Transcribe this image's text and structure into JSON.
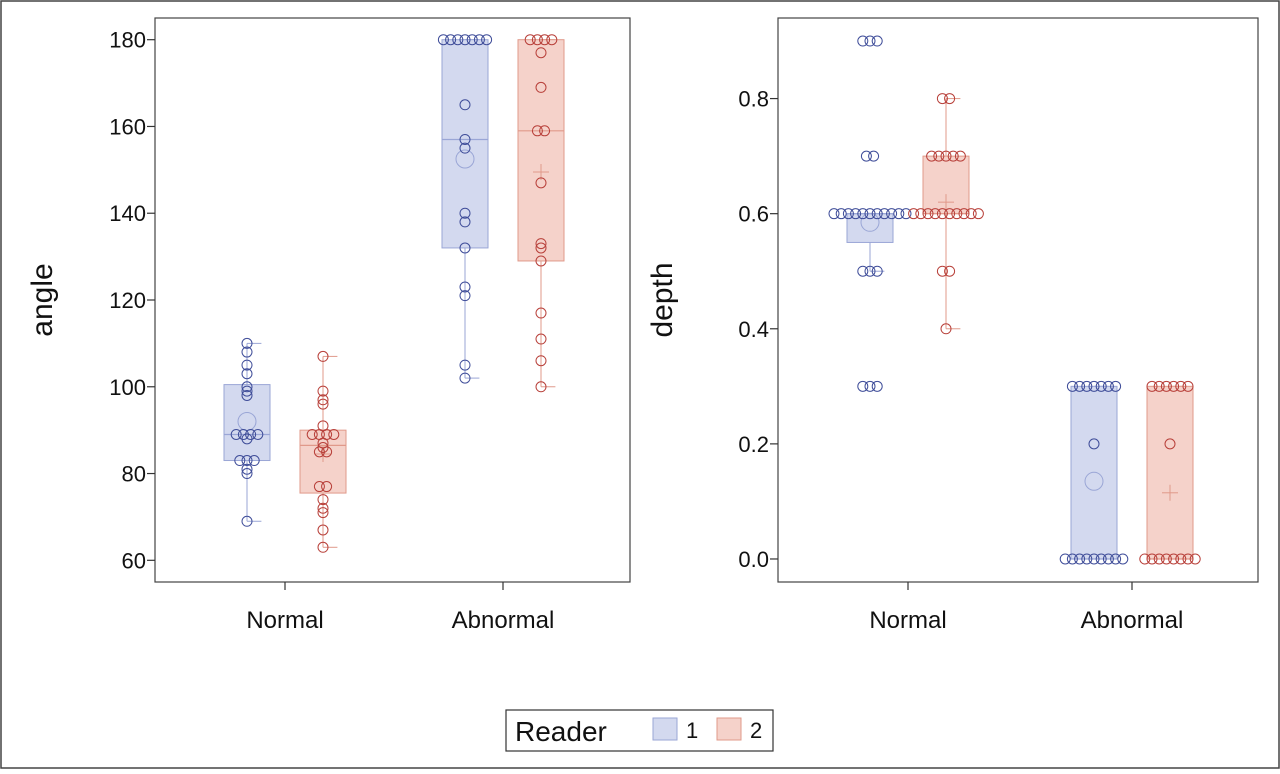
{
  "colors": {
    "reader1_fill": "#d3d9ef",
    "reader1_stroke": "#9aa6d6",
    "reader1_point": "#3f4d99",
    "reader2_fill": "#f5d2ca",
    "reader2_stroke": "#e0998a",
    "reader2_point": "#b8403a",
    "axis": "#333333",
    "frame": "#444444"
  },
  "legend": {
    "title": "Reader",
    "items": [
      "1",
      "2"
    ]
  },
  "chart_data": [
    {
      "type": "box",
      "ylabel": "angle",
      "xlabel": "",
      "title": "",
      "categories": [
        "Normal",
        "Abnormal"
      ],
      "ylim": [
        55,
        185
      ],
      "yticks": [
        60,
        80,
        100,
        120,
        140,
        160,
        180
      ],
      "ytick_labels": [
        "60",
        "80",
        "100",
        "120",
        "140",
        "160",
        "180"
      ],
      "series": [
        {
          "name": "1",
          "boxes": [
            {
              "category": "Normal",
              "min": 69,
              "q1": 83,
              "median": 89,
              "q3": 100.5,
              "max": 110,
              "mean": 92,
              "points": [
                110,
                108,
                105,
                103,
                100,
                99,
                98,
                89,
                89,
                89,
                89,
                88,
                83,
                83,
                83,
                81,
                80,
                69
              ]
            },
            {
              "category": "Abnormal",
              "min": 102,
              "q1": 132,
              "median": 157,
              "q3": 180,
              "max": 180,
              "mean": 152.5,
              "points": [
                180,
                180,
                180,
                180,
                180,
                180,
                180,
                165,
                157,
                155,
                140,
                138,
                132,
                123,
                121,
                105,
                102
              ]
            }
          ]
        },
        {
          "name": "2",
          "boxes": [
            {
              "category": "Normal",
              "min": 63,
              "q1": 75.5,
              "median": 86.5,
              "q3": 90,
              "max": 107,
              "mean": 84.5,
              "points": [
                107,
                99,
                97,
                96,
                91,
                89,
                89,
                89,
                89,
                87,
                86,
                85,
                85,
                77,
                77,
                74,
                72,
                71,
                67,
                63
              ]
            },
            {
              "category": "Abnormal",
              "min": 100,
              "q1": 129,
              "median": 159,
              "q3": 180,
              "max": 180,
              "mean": 149.5,
              "points": [
                180,
                180,
                180,
                180,
                177,
                169,
                159,
                159,
                147,
                133,
                132,
                129,
                117,
                111,
                106,
                100
              ]
            }
          ]
        }
      ]
    },
    {
      "type": "box",
      "ylabel": "depth",
      "xlabel": "",
      "title": "",
      "categories": [
        "Normal",
        "Abnormal"
      ],
      "ylim": [
        -0.04,
        0.94
      ],
      "yticks": [
        0.0,
        0.2,
        0.4,
        0.6,
        0.8
      ],
      "ytick_labels": [
        "0.0",
        "0.2",
        "0.4",
        "0.6",
        "0.8"
      ],
      "series": [
        {
          "name": "1",
          "boxes": [
            {
              "category": "Normal",
              "min": 0.5,
              "q1": 0.55,
              "median": 0.6,
              "q3": 0.6,
              "max": 0.6,
              "mean": 0.585,
              "points": [
                0.9,
                0.9,
                0.9,
                0.7,
                0.7,
                0.6,
                0.6,
                0.6,
                0.6,
                0.6,
                0.6,
                0.6,
                0.6,
                0.6,
                0.6,
                0.6,
                0.5,
                0.5,
                0.5,
                0.3,
                0.3,
                0.3
              ]
            },
            {
              "category": "Abnormal",
              "min": 0.0,
              "q1": 0.0,
              "median": 0.0,
              "q3": 0.3,
              "max": 0.3,
              "mean": 0.135,
              "points": [
                0.3,
                0.3,
                0.3,
                0.3,
                0.3,
                0.3,
                0.3,
                0.2,
                0.0,
                0.0,
                0.0,
                0.0,
                0.0,
                0.0,
                0.0,
                0.0,
                0.0
              ]
            }
          ]
        },
        {
          "name": "2",
          "boxes": [
            {
              "category": "Normal",
              "min": 0.4,
              "q1": 0.6,
              "median": 0.6,
              "q3": 0.7,
              "max": 0.8,
              "mean": 0.62,
              "points": [
                0.8,
                0.8,
                0.7,
                0.7,
                0.7,
                0.7,
                0.7,
                0.6,
                0.6,
                0.6,
                0.6,
                0.6,
                0.6,
                0.6,
                0.6,
                0.6,
                0.6,
                0.5,
                0.5,
                0.4
              ]
            },
            {
              "category": "Abnormal",
              "min": 0.0,
              "q1": 0.0,
              "median": 0.0,
              "q3": 0.3,
              "max": 0.3,
              "mean": 0.115,
              "points": [
                0.3,
                0.3,
                0.3,
                0.3,
                0.3,
                0.3,
                0.2,
                0.0,
                0.0,
                0.0,
                0.0,
                0.0,
                0.0,
                0.0,
                0.0
              ]
            }
          ]
        }
      ]
    }
  ]
}
